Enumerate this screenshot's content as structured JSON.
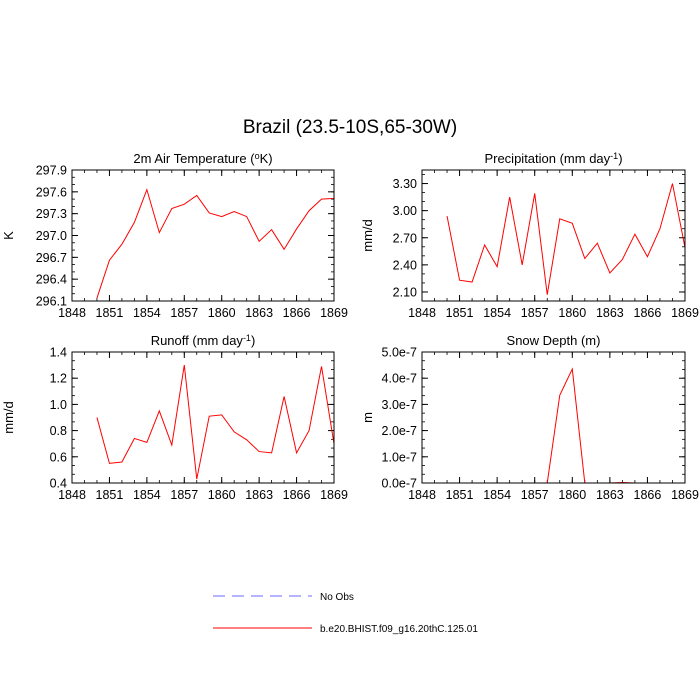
{
  "figure": {
    "title": "Brazil (23.5-10S,65-30W)"
  },
  "chart_data": [
    {
      "type": "line",
      "title": "2m Air Temperature (",
      "title_sup": "o",
      "title_end": "K)",
      "ylabel": "K",
      "xlim": [
        1848,
        1869
      ],
      "xticks": [
        1848,
        1851,
        1854,
        1857,
        1860,
        1863,
        1866,
        1869
      ],
      "ylim": [
        296.1,
        297.9
      ],
      "yticks": [
        "296.1",
        "296.4",
        "296.7",
        "297.0",
        "297.3",
        "297.6",
        "297.9"
      ],
      "series": [
        {
          "color": "#ff0000",
          "x": [
            1850,
            1851,
            1852,
            1853,
            1854,
            1855,
            1856,
            1857,
            1858,
            1859,
            1860,
            1861,
            1862,
            1863,
            1864,
            1865,
            1866,
            1867,
            1868,
            1869
          ],
          "values": [
            296.14,
            296.66,
            296.88,
            297.18,
            297.63,
            297.04,
            297.37,
            297.43,
            297.55,
            297.31,
            297.26,
            297.33,
            297.26,
            296.92,
            297.08,
            296.81,
            297.09,
            297.34,
            297.5,
            297.51
          ]
        }
      ]
    },
    {
      "type": "line",
      "title": "Precipitation (mm day",
      "title_sup": "-1",
      "title_end": ")",
      "ylabel": "mm/d",
      "xlim": [
        1848,
        1869
      ],
      "xticks": [
        1848,
        1851,
        1854,
        1857,
        1860,
        1863,
        1866,
        1869
      ],
      "ylim": [
        2.0,
        3.45
      ],
      "yticks": [
        "2.10",
        "2.40",
        "2.70",
        "3.00",
        "3.30"
      ],
      "series": [
        {
          "color": "#ff0000",
          "x": [
            1850,
            1851,
            1852,
            1853,
            1854,
            1855,
            1856,
            1857,
            1858,
            1859,
            1860,
            1861,
            1862,
            1863,
            1864,
            1865,
            1866,
            1867,
            1868,
            1869
          ],
          "values": [
            2.94,
            2.23,
            2.21,
            2.62,
            2.38,
            3.15,
            2.4,
            3.19,
            2.07,
            2.91,
            2.86,
            2.47,
            2.64,
            2.31,
            2.46,
            2.74,
            2.49,
            2.8,
            3.3,
            2.59
          ]
        }
      ]
    },
    {
      "type": "line",
      "title": "Runoff (mm day",
      "title_sup": "-1",
      "title_end": ")",
      "ylabel": "mm/d",
      "xlim": [
        1848,
        1869
      ],
      "xticks": [
        1848,
        1851,
        1854,
        1857,
        1860,
        1863,
        1866,
        1869
      ],
      "ylim": [
        0.4,
        1.4
      ],
      "yticks": [
        "0.4",
        "0.6",
        "0.8",
        "1.0",
        "1.2",
        "1.4"
      ],
      "series": [
        {
          "color": "#ff0000",
          "x": [
            1850,
            1851,
            1852,
            1853,
            1854,
            1855,
            1856,
            1857,
            1858,
            1859,
            1860,
            1861,
            1862,
            1863,
            1864,
            1865,
            1866,
            1867,
            1868,
            1869
          ],
          "values": [
            0.9,
            0.55,
            0.56,
            0.74,
            0.71,
            0.95,
            0.69,
            1.3,
            0.43,
            0.91,
            0.92,
            0.79,
            0.73,
            0.64,
            0.63,
            1.06,
            0.63,
            0.8,
            1.29,
            0.7
          ]
        }
      ]
    },
    {
      "type": "line",
      "title": "Snow Depth (m)",
      "title_sup": "",
      "title_end": "",
      "ylabel": "m",
      "xlim": [
        1848,
        1869
      ],
      "xticks": [
        1848,
        1851,
        1854,
        1857,
        1860,
        1863,
        1866,
        1869
      ],
      "ylim": [
        0,
        5e-07
      ],
      "yticks": [
        "0.0e-7",
        "1.0e-7",
        "2.0e-7",
        "3.0e-7",
        "4.0e-7",
        "5.0e-7"
      ],
      "series": [
        {
          "color": "#ff0000",
          "x": [
            1850,
            1851,
            1852,
            1853,
            1854,
            1855,
            1856,
            1857,
            1858,
            1859,
            1860,
            1861,
            1862,
            1863,
            1864,
            1865,
            1866,
            1867,
            1868,
            1869
          ],
          "values": [
            0,
            0,
            0,
            0,
            0,
            0,
            0,
            0,
            0,
            3.35e-07,
            4.35e-07,
            0,
            0,
            0,
            2e-09,
            0,
            0,
            0,
            0,
            0
          ]
        }
      ]
    }
  ],
  "legend": {
    "placement": "bottom",
    "items": [
      {
        "label": "No Obs",
        "color": "#6a6aff",
        "dashed": true
      },
      {
        "label": "b.e20.BHIST.f09_g16.20thC.125.01",
        "color": "#ff0000",
        "dashed": false
      }
    ]
  }
}
